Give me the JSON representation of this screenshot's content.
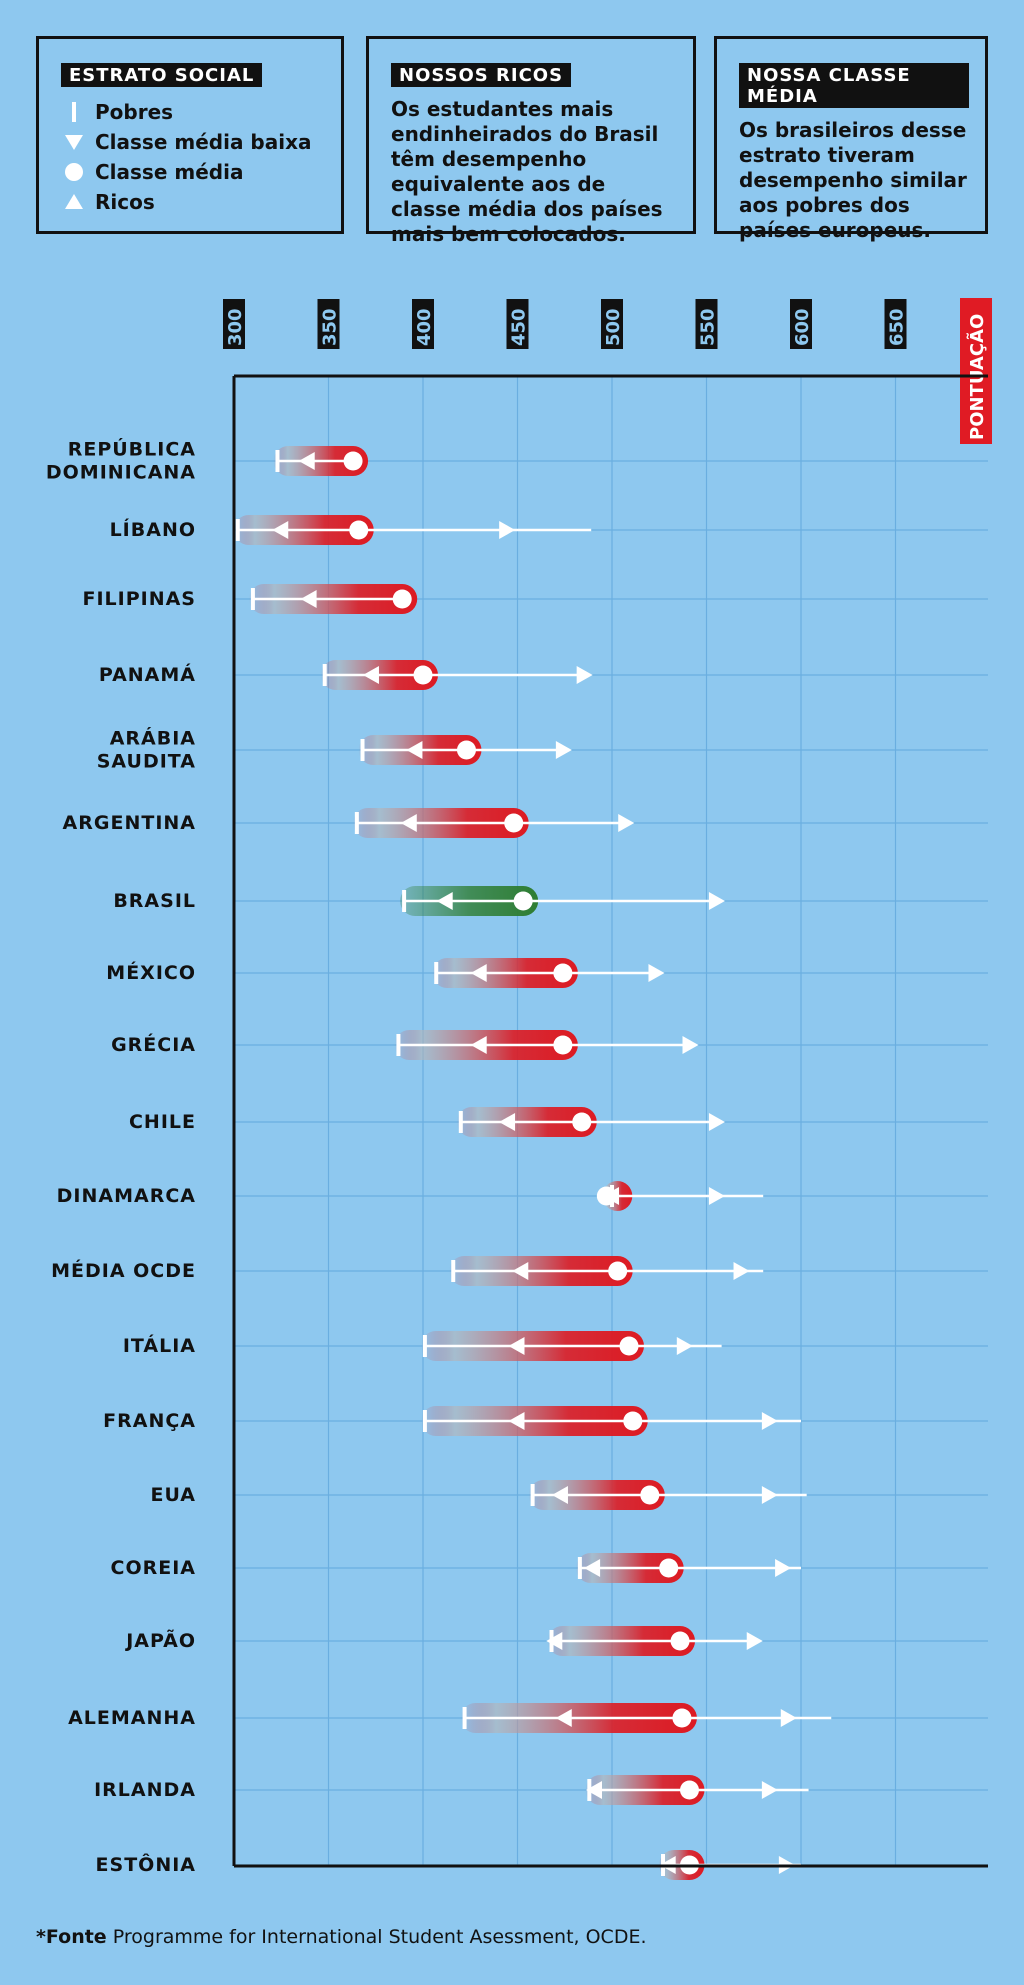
{
  "legend": {
    "title": "ESTRATO SOCIAL",
    "items": [
      {
        "symbol": "tick",
        "label": "Pobres"
      },
      {
        "symbol": "triangle-down",
        "label": "Classe média baixa"
      },
      {
        "symbol": "circle",
        "label": "Classe média"
      },
      {
        "symbol": "triangle-up",
        "label": "Ricos"
      }
    ]
  },
  "box_rich": {
    "title": "NOSSOS RICOS",
    "text": "Os estudantes mais endinheirados do Brasil têm desempenho equivalente aos de classe média dos países mais bem colocados."
  },
  "box_middle": {
    "title": "NOSSA CLASSE MÉDIA",
    "text": "Os brasileiros desse estrato tiveram desempenho similar aos pobres dos países europeus."
  },
  "footnote": {
    "bold": "*Fonte",
    "text": " Programme for International Student Asessment, OCDE."
  },
  "colors": {
    "background": "#8ec8ef",
    "bar_red": "#dd1a22",
    "bar_green": "#2e7d32",
    "axis_tag": "#e01b24"
  },
  "chart_data": {
    "type": "range-dot",
    "xlabel": "PONTUAÇÃO",
    "xlim": [
      300,
      700
    ],
    "xticks": [
      300,
      350,
      400,
      450,
      500,
      550,
      600,
      650
    ],
    "series_names": [
      "Pobres",
      "Classe média baixa",
      "Classe média",
      "Ricos"
    ],
    "rows": [
      {
        "label": [
          "REPÚBLICA",
          "DOMINICANA"
        ],
        "pobres": 323,
        "media_baixa": 339,
        "media": 363,
        "ricos": 363,
        "highlight": false
      },
      {
        "label": [
          "LÍBANO"
        ],
        "pobres": 302,
        "media_baixa": 325,
        "media": 366,
        "ricos": 444,
        "max": 489,
        "highlight": false
      },
      {
        "label": [
          "FILIPINAS"
        ],
        "pobres": 310,
        "media_baixa": 340,
        "media": 389,
        "ricos": 389,
        "highlight": false
      },
      {
        "label": [
          "PANAMÁ"
        ],
        "pobres": 348,
        "media_baixa": 373,
        "media": 400,
        "ricos": 485,
        "highlight": false
      },
      {
        "label": [
          "ARÁBIA",
          "SAUDITA"
        ],
        "pobres": 368,
        "media_baixa": 396,
        "media": 423,
        "ricos": 474,
        "highlight": false
      },
      {
        "label": [
          "ARGENTINA"
        ],
        "pobres": 365,
        "media_baixa": 393,
        "media": 448,
        "ricos": 507,
        "highlight": false
      },
      {
        "label": [
          "BRASIL"
        ],
        "pobres": 390,
        "media_baixa": 412,
        "media": 453,
        "ricos": 555,
        "highlight": true
      },
      {
        "label": [
          "MÉXICO"
        ],
        "pobres": 407,
        "media_baixa": 430,
        "media": 474,
        "ricos": 523,
        "highlight": false
      },
      {
        "label": [
          "GRÉCIA"
        ],
        "pobres": 387,
        "media_baixa": 430,
        "media": 474,
        "ricos": 541,
        "highlight": false
      },
      {
        "label": [
          "CHILE"
        ],
        "pobres": 420,
        "media_baixa": 445,
        "media": 484,
        "ricos": 555,
        "highlight": false
      },
      {
        "label": [
          "DINAMARCA"
        ],
        "pobres": 500,
        "media_baixa": 500,
        "media": 497,
        "ricos": 555,
        "max": 580,
        "highlight": false
      },
      {
        "label": [
          "MÉDIA OCDE"
        ],
        "pobres": 416,
        "media_baixa": 452,
        "media": 503,
        "ricos": 568,
        "max": 580,
        "highlight": false
      },
      {
        "label": [
          "ITÁLIA"
        ],
        "pobres": 401,
        "media_baixa": 450,
        "media": 509,
        "ricos": 538,
        "max": 558,
        "highlight": false
      },
      {
        "label": [
          "FRANÇA"
        ],
        "pobres": 401,
        "media_baixa": 450,
        "media": 511,
        "ricos": 583,
        "max": 600,
        "highlight": false
      },
      {
        "label": [
          "EUA"
        ],
        "pobres": 458,
        "media_baixa": 473,
        "media": 520,
        "ricos": 583,
        "max": 603,
        "highlight": false
      },
      {
        "label": [
          "COREIA"
        ],
        "pobres": 483,
        "media_baixa": 490,
        "media": 530,
        "ricos": 590,
        "max": 600,
        "highlight": false
      },
      {
        "label": [
          "JAPÃO"
        ],
        "pobres": 468,
        "media_baixa": 470,
        "media": 536,
        "ricos": 575,
        "highlight": false
      },
      {
        "label": [
          "ALEMANHA"
        ],
        "pobres": 422,
        "media_baixa": 475,
        "media": 537,
        "ricos": 593,
        "max": 616,
        "highlight": false
      },
      {
        "label": [
          "IRLANDA"
        ],
        "pobres": 488,
        "media_baixa": 491,
        "media": 541,
        "ricos": 583,
        "max": 604,
        "highlight": false
      },
      {
        "label": [
          "ESTÔNIA"
        ],
        "pobres": 527,
        "media_baixa": 530,
        "media": 541,
        "ricos": 592,
        "max": 600,
        "highlight": false
      }
    ]
  }
}
